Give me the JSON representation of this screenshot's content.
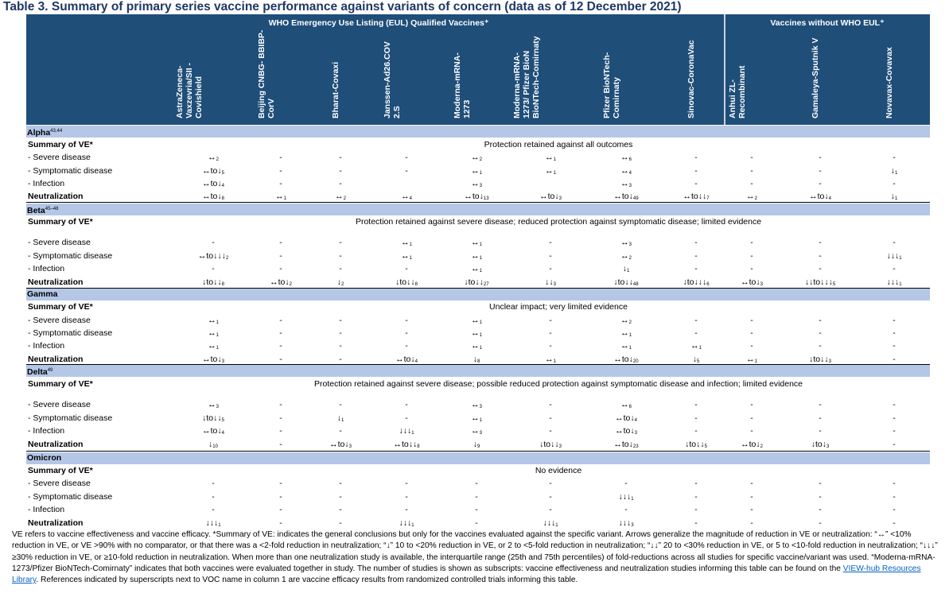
{
  "title": "Table 3. Summary of primary series vaccine performance against variants of concern (data as of 12 December 2021)",
  "groups": {
    "eul": "WHO Emergency Use Listing (EUL) Qualified Vaccines⁺",
    "noneul": "Vaccines without WHO EUL⁺"
  },
  "vaccines": [
    [
      "AstraZeneca-",
      "Vaxzevria/SII -",
      "Covishield"
    ],
    [
      "Beijing CNBG- BBIBP-",
      "CorV"
    ],
    [
      "Bharat-Covaxi"
    ],
    [
      "Janssen-Ad26.COV",
      "2.S"
    ],
    [
      "Moderna-mRNA-",
      "1273"
    ],
    [
      "Moderna-mRNA-",
      "1273/ Pfizer BioN",
      "BioNTech-Comirnaty"
    ],
    [
      "Pfizer BioNTech-",
      "Comirnaty"
    ],
    [
      "Sinovac-CoronaVac"
    ],
    [
      "Anhui ZL-",
      "Recombinant"
    ],
    [
      "Gamaleya-Sputnik V"
    ],
    [
      "Novavax-Covavax"
    ]
  ],
  "sections": [
    {
      "variant": "Alpha",
      "sup": "43,44",
      "summary_label": "Summary of VE*",
      "summary": "Protection retained against all outcomes",
      "rows": [
        {
          "label": "- Severe disease",
          "cells": [
            [
              "↔",
              "2"
            ],
            [
              "-",
              ""
            ],
            [
              "-",
              ""
            ],
            [
              "-",
              ""
            ],
            [
              "↔",
              "2"
            ],
            [
              "↔",
              "1"
            ],
            [
              "↔",
              "6"
            ],
            [
              "-",
              ""
            ],
            [
              "-",
              ""
            ],
            [
              "-",
              ""
            ],
            [
              "-",
              ""
            ]
          ]
        },
        {
          "label": "- Symptomatic disease",
          "cells": [
            [
              "↔to↓",
              "5"
            ],
            [
              "-",
              ""
            ],
            [
              "-",
              ""
            ],
            [
              "-",
              ""
            ],
            [
              "↔",
              "1"
            ],
            [
              "↔",
              "1"
            ],
            [
              "↔",
              "4"
            ],
            [
              "-",
              ""
            ],
            [
              "-",
              ""
            ],
            [
              "-",
              ""
            ],
            [
              "↓",
              "1"
            ]
          ]
        },
        {
          "label": "- Infection",
          "cells": [
            [
              "↔to↓",
              "4"
            ],
            [
              "-",
              ""
            ],
            [
              "-",
              ""
            ],
            [
              "",
              ""
            ],
            [
              "↔",
              "3"
            ],
            [
              "",
              ""
            ],
            [
              "↔",
              "3"
            ],
            [
              "-",
              ""
            ],
            [
              "-",
              ""
            ],
            [
              "-",
              ""
            ],
            [
              "-",
              ""
            ]
          ]
        },
        {
          "label": "Neutralization",
          "cells": [
            [
              "↔to↓",
              "8"
            ],
            [
              "↔",
              "1"
            ],
            [
              "↔",
              "2"
            ],
            [
              "↔",
              "4"
            ],
            [
              "↔to↓",
              "13"
            ],
            [
              "↔to↓",
              "3"
            ],
            [
              "↔to↓",
              "49"
            ],
            [
              "↔to↓↓",
              "7"
            ],
            [
              "↔",
              "2"
            ],
            [
              "↔to↓",
              "4"
            ],
            [
              "↓",
              "1"
            ]
          ]
        }
      ]
    },
    {
      "variant": "Beta",
      "sup": "45–48",
      "summary_label": "Summary of VE*",
      "summary": "Protection retained against severe disease; reduced protection against symptomatic disease; limited evidence",
      "rows": [
        {
          "label": "- Severe disease",
          "cells": [
            [
              "-",
              ""
            ],
            [
              "-",
              ""
            ],
            [
              "-",
              ""
            ],
            [
              "↔",
              "1"
            ],
            [
              "↔",
              "1"
            ],
            [
              "-",
              ""
            ],
            [
              "↔",
              "3"
            ],
            [
              "-",
              ""
            ],
            [
              "-",
              ""
            ],
            [
              "-",
              ""
            ],
            [
              "-",
              ""
            ]
          ]
        },
        {
          "label": "- Symptomatic disease",
          "cells": [
            [
              "↔to↓↓↓",
              "2"
            ],
            [
              "-",
              ""
            ],
            [
              "-",
              ""
            ],
            [
              "↔",
              "1"
            ],
            [
              "↔",
              "1"
            ],
            [
              "-",
              ""
            ],
            [
              "↔",
              "2"
            ],
            [
              "-",
              ""
            ],
            [
              "-",
              ""
            ],
            [
              "-",
              ""
            ],
            [
              "↓↓↓",
              "1"
            ]
          ]
        },
        {
          "label": "- Infection",
          "cells": [
            [
              "-",
              ""
            ],
            [
              "-",
              ""
            ],
            [
              "-",
              ""
            ],
            [
              "-",
              ""
            ],
            [
              "↔",
              "1"
            ],
            [
              "-",
              ""
            ],
            [
              "↓",
              "1"
            ],
            [
              "-",
              ""
            ],
            [
              "-",
              ""
            ],
            [
              "-",
              ""
            ],
            [
              "-",
              ""
            ]
          ]
        },
        {
          "label": "Neutralization",
          "cells": [
            [
              "↓to↓↓",
              "8"
            ],
            [
              "↔to↓",
              "2"
            ],
            [
              "↓",
              "2"
            ],
            [
              "↓to↓↓",
              "8"
            ],
            [
              "↓to↓↓",
              "27"
            ],
            [
              "↓↓",
              "3"
            ],
            [
              "↓to↓↓",
              "48"
            ],
            [
              "↓to↓↓↓",
              "6"
            ],
            [
              "↔to↓",
              "3"
            ],
            [
              "↓↓to↓↓↓",
              "5"
            ],
            [
              "↓↓↓",
              "1"
            ]
          ]
        }
      ]
    },
    {
      "variant": "Gamma",
      "sup": "",
      "summary_label": "Summary of VE*",
      "summary": "Unclear impact; very limited evidence",
      "rows": [
        {
          "label": "- Severe disease",
          "cells": [
            [
              "↔",
              "1"
            ],
            [
              "-",
              ""
            ],
            [
              "-",
              ""
            ],
            [
              "-",
              ""
            ],
            [
              "↔",
              "1"
            ],
            [
              "-",
              ""
            ],
            [
              "↔",
              "2"
            ],
            [
              "-",
              ""
            ],
            [
              "-",
              ""
            ],
            [
              "-",
              ""
            ],
            [
              "-",
              ""
            ]
          ]
        },
        {
          "label": "- Symptomatic disease",
          "cells": [
            [
              "↔",
              "1"
            ],
            [
              "-",
              ""
            ],
            [
              "-",
              ""
            ],
            [
              "-",
              ""
            ],
            [
              "↔",
              "1"
            ],
            [
              "-",
              ""
            ],
            [
              "↔",
              "1"
            ],
            [
              "-",
              ""
            ],
            [
              "-",
              ""
            ],
            [
              "-",
              ""
            ],
            [
              "-",
              ""
            ]
          ]
        },
        {
          "label": "- Infection",
          "cells": [
            [
              "↔",
              "1"
            ],
            [
              "-",
              ""
            ],
            [
              "-",
              ""
            ],
            [
              "-",
              ""
            ],
            [
              "↔",
              "1"
            ],
            [
              "-",
              ""
            ],
            [
              "↔",
              "1"
            ],
            [
              "↔",
              "1"
            ],
            [
              "-",
              ""
            ],
            [
              "-",
              ""
            ],
            [
              "-",
              ""
            ]
          ]
        },
        {
          "label": "Neutralization",
          "cells": [
            [
              "↔to↓",
              "3"
            ],
            [
              "-",
              ""
            ],
            [
              "-",
              ""
            ],
            [
              "↔to↓",
              "4"
            ],
            [
              "↓",
              "8"
            ],
            [
              "↔",
              "1"
            ],
            [
              "↔to↓",
              "20"
            ],
            [
              "↓",
              "5"
            ],
            [
              "↔",
              "1"
            ],
            [
              "↓to↓↓",
              "3"
            ],
            [
              "-",
              ""
            ]
          ]
        }
      ]
    },
    {
      "variant": "Delta",
      "sup": "49",
      "summary_label": "Summary of VE*",
      "summary": "Protection retained against severe disease; possible reduced protection against symptomatic disease and infection; limited evidence",
      "rows": [
        {
          "label": "- Severe disease",
          "cells": [
            [
              "↔",
              "3"
            ],
            [
              "-",
              ""
            ],
            [
              "-",
              ""
            ],
            [
              "-",
              ""
            ],
            [
              "↔",
              "3"
            ],
            [
              "-",
              ""
            ],
            [
              "↔",
              "6"
            ],
            [
              "-",
              ""
            ],
            [
              "-",
              ""
            ],
            [
              "-",
              ""
            ],
            [
              "-",
              ""
            ]
          ]
        },
        {
          "label": "- Symptomatic disease",
          "cells": [
            [
              "↓to↓↓",
              "5"
            ],
            [
              "-",
              ""
            ],
            [
              "↓",
              "1"
            ],
            [
              "-",
              ""
            ],
            [
              "↔",
              "1"
            ],
            [
              "-",
              ""
            ],
            [
              "↔to↓",
              "4"
            ],
            [
              "-",
              ""
            ],
            [
              "-",
              ""
            ],
            [
              "-",
              ""
            ],
            [
              "-",
              ""
            ]
          ]
        },
        {
          "label": "- Infection",
          "cells": [
            [
              "↔to↓",
              "4"
            ],
            [
              "-",
              ""
            ],
            [
              "-",
              ""
            ],
            [
              "↓↓↓",
              "1"
            ],
            [
              "↔",
              "3"
            ],
            [
              "-",
              ""
            ],
            [
              "↔to↓",
              "3"
            ],
            [
              "-",
              ""
            ],
            [
              "-",
              ""
            ],
            [
              "-",
              ""
            ],
            [
              "-",
              ""
            ]
          ]
        },
        {
          "label": "Neutralization",
          "cells": [
            [
              "↓",
              "10"
            ],
            [
              "-",
              ""
            ],
            [
              "↔to↓",
              "3"
            ],
            [
              "↔to↓↓",
              "8"
            ],
            [
              "↓",
              "9"
            ],
            [
              "↓to↓↓",
              "3"
            ],
            [
              "↔to↓",
              "23"
            ],
            [
              "↓to↓↓",
              "5"
            ],
            [
              "↔to↓",
              "2"
            ],
            [
              "↓to↓",
              "3"
            ],
            [
              "-",
              ""
            ]
          ]
        }
      ]
    },
    {
      "variant": "Omicron",
      "sup": "",
      "summary_label": "Summary of VE*",
      "summary": "No evidence",
      "rows": [
        {
          "label": "- Severe disease",
          "cells": [
            [
              "-",
              ""
            ],
            [
              "-",
              ""
            ],
            [
              "-",
              ""
            ],
            [
              "-",
              ""
            ],
            [
              "-",
              ""
            ],
            [
              "-",
              ""
            ],
            [
              "-",
              ""
            ],
            [
              "-",
              ""
            ],
            [
              "-",
              ""
            ],
            [
              "-",
              ""
            ],
            [
              "-",
              ""
            ]
          ]
        },
        {
          "label": "- Symptomatic disease",
          "cells": [
            [
              "-",
              ""
            ],
            [
              "-",
              ""
            ],
            [
              "-",
              ""
            ],
            [
              "-",
              ""
            ],
            [
              "-",
              ""
            ],
            [
              "-",
              ""
            ],
            [
              "↓↓↓",
              "1"
            ],
            [
              "-",
              ""
            ],
            [
              "-",
              ""
            ],
            [
              "-",
              ""
            ],
            [
              "-",
              ""
            ]
          ]
        },
        {
          "label": "- Infection",
          "cells": [
            [
              "-",
              ""
            ],
            [
              "-",
              ""
            ],
            [
              "-",
              ""
            ],
            [
              "-",
              ""
            ],
            [
              "-",
              ""
            ],
            [
              "-",
              ""
            ],
            [
              "-",
              ""
            ],
            [
              "-",
              ""
            ],
            [
              "-",
              ""
            ],
            [
              "-",
              ""
            ],
            [
              "-",
              ""
            ]
          ]
        },
        {
          "label": "Neutralization",
          "cells": [
            [
              "↓↓↓",
              "1"
            ],
            [
              "-",
              ""
            ],
            [
              "-",
              ""
            ],
            [
              "↓↓↓",
              "1"
            ],
            [
              "-",
              ""
            ],
            [
              "↓↓↓",
              "1"
            ],
            [
              "↓↓↓",
              "3"
            ],
            [
              "-",
              ""
            ],
            [
              "-",
              ""
            ],
            [
              "-",
              ""
            ],
            [
              "-",
              ""
            ]
          ]
        }
      ]
    }
  ],
  "footnote": {
    "pre": "VE refers to vaccine effectiveness and vaccine efficacy.  *Summary of VE: indicates the general conclusions but only for the vaccines evaluated against the specific variant. Arrows generalize the magnitude of reduction in VE or neutralization: “↔” <10% reduction in VE, or VE >90% with no comparator, or that there was a <2-fold reduction in neutralization; “↓” 10 to <20% reduction in VE, or 2 to <5-fold reduction in neutralization; “↓↓” 20 to <30% reduction in VE, or 5 to <10-fold reduction in neutralization; “↓↓↓” ≥30% reduction in VE, or ≥10-fold reduction in neutralization. When more than one neutralization study is available, the interquartile range (25th and 75th percentiles) of fold-reductions across all studies for specific vaccine/variant was used.  “Moderna-mRNA-1273/Pfizer BioNTech-Comirnaty” indicates that both vaccines were evaluated together in study. The number of studies is shown as subscripts: vaccine effectiveness and neutralization studies informing this table can be found on the ",
    "link": "VIEW-hub Resources Library",
    "post": ". References indicated by superscripts next to VOC name in column 1 are vaccine efficacy results from randomized controlled trials informing this table."
  }
}
